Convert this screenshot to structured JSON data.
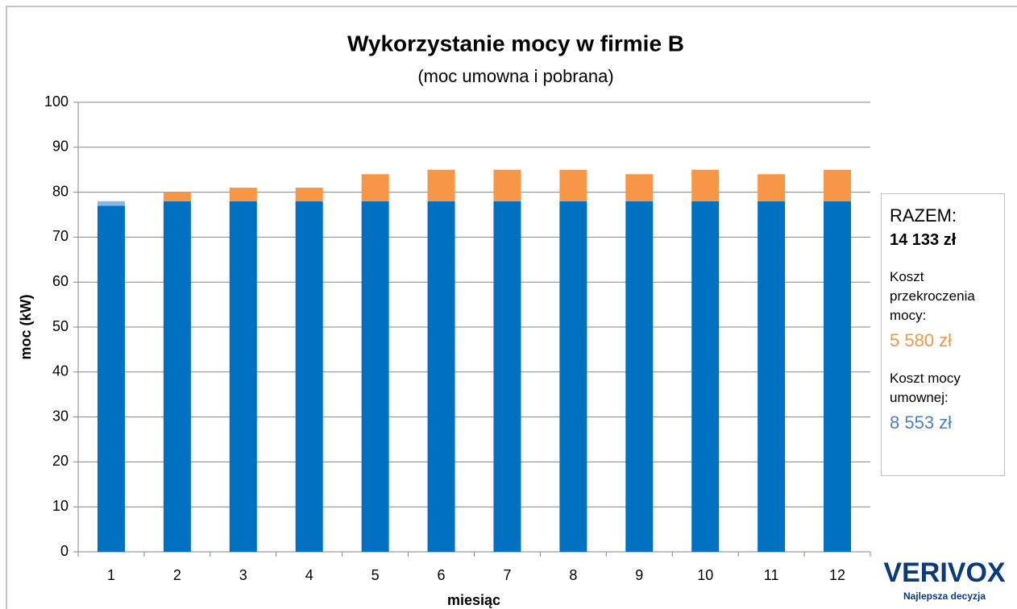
{
  "chart_data": {
    "type": "stacked_bar",
    "title": "Wykorzystanie mocy  w firmie B",
    "subtitle": "(moc umowna i pobrana)",
    "y_label": "moc (kW)",
    "x_label": "miesiąc",
    "categories": [
      "1",
      "2",
      "3",
      "4",
      "5",
      "6",
      "7",
      "8",
      "9",
      "10",
      "11",
      "12"
    ],
    "series": [
      {
        "color": "#0070c0",
        "values": [
          77,
          78,
          78,
          78,
          78,
          78,
          78,
          78,
          78,
          78,
          78,
          78
        ]
      },
      {
        "color": "#8eb4e3",
        "values": [
          1,
          0,
          0,
          0,
          0,
          0,
          0,
          0,
          0,
          0,
          0,
          0
        ]
      },
      {
        "color": "#f79646",
        "values": [
          0,
          2,
          3,
          3,
          6,
          7,
          7,
          7,
          6,
          7,
          6,
          7
        ]
      }
    ],
    "ylim": [
      0,
      100
    ],
    "yticks": [
      0,
      10,
      20,
      30,
      40,
      50,
      60,
      70,
      80,
      90,
      100
    ],
    "grid": true
  },
  "summary": {
    "total_label": "RAZEM:",
    "total": "14 133 zł",
    "excess_label": "Koszt przekroczenia mocy:",
    "excess": "5 580 zł",
    "contract_label": "Koszt mocy umownej:",
    "contract": "8 553 zł"
  },
  "logo": {
    "name": "VERIVOX",
    "tagline": "Najlepsza decyzja"
  }
}
